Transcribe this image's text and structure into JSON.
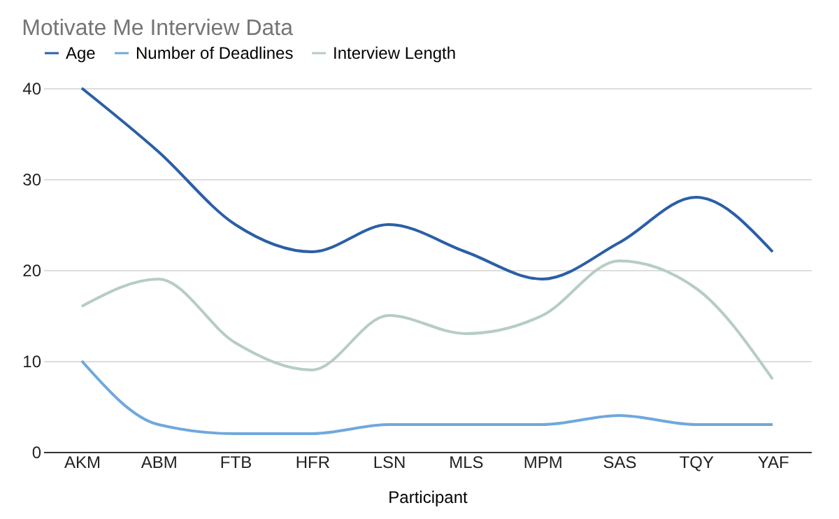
{
  "chart_data": {
    "type": "line",
    "title": "Motivate Me Interview Data",
    "xlabel": "Participant",
    "categories": [
      "AKM",
      "ABM",
      "FTB",
      "HFR",
      "LSN",
      "MLS",
      "MPM",
      "SAS",
      "TQY",
      "YAF"
    ],
    "series": [
      {
        "name": "Age",
        "color": "#2b5fa6",
        "values": [
          40,
          33,
          25,
          22,
          25,
          22,
          19,
          23,
          28,
          22
        ]
      },
      {
        "name": "Number of Deadlines",
        "color": "#6fa8dc",
        "values": [
          10,
          3,
          2,
          2,
          3,
          3,
          3,
          4,
          3,
          3
        ]
      },
      {
        "name": "Interview Length",
        "color": "#b6cdc2",
        "values": [
          16,
          19,
          12,
          9,
          15,
          13,
          15,
          21,
          18,
          8
        ]
      }
    ],
    "ylim": [
      0,
      40
    ],
    "yticks": [
      0,
      10,
      20,
      30,
      40
    ],
    "grid": "y",
    "legend": "top",
    "marker": "none",
    "line_style": "solid"
  }
}
